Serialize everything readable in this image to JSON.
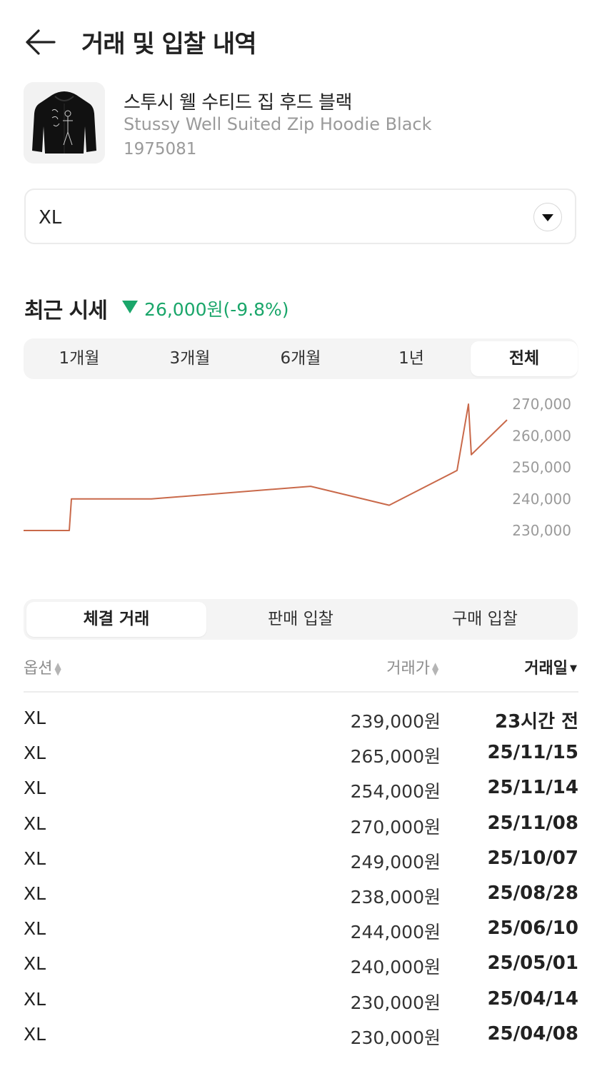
{
  "header": {
    "title": "거래 및 입찰 내역",
    "back_icon": "arrow-left-icon"
  },
  "product": {
    "name_ko": "스투시 웰 수티드 집 후드 블랙",
    "name_en": "Stussy Well Suited Zip Hoodie Black",
    "code": "1975081"
  },
  "size_select": {
    "value": "XL",
    "icon": "chevron-down-icon"
  },
  "recent": {
    "label": "최근 시세",
    "change": "26,000원(-9.8%)",
    "direction": "down",
    "color": "#1aa66a"
  },
  "period_tabs": [
    {
      "label": "1개월",
      "active": false
    },
    {
      "label": "3개월",
      "active": false
    },
    {
      "label": "6개월",
      "active": false
    },
    {
      "label": "1년",
      "active": false
    },
    {
      "label": "전체",
      "active": true
    }
  ],
  "chart_data": {
    "type": "line",
    "line_color": "#c9694a",
    "y_ticks": [
      "270,000",
      "260,000",
      "250,000",
      "240,000",
      "230,000"
    ],
    "ylim": [
      230000,
      270000
    ],
    "x": [
      "25/04/08",
      "25/04/14",
      "25/05/01",
      "25/06/10",
      "25/08/28",
      "25/10/07",
      "25/11/08",
      "25/11/14",
      "25/11/15"
    ],
    "values": [
      230000,
      230000,
      240000,
      244000,
      238000,
      249000,
      270000,
      254000,
      265000
    ]
  },
  "list_tabs": [
    {
      "label": "체결 거래",
      "active": true
    },
    {
      "label": "판매 입찰",
      "active": false
    },
    {
      "label": "구매 입찰",
      "active": false
    }
  ],
  "table": {
    "headers": {
      "option": "옵션",
      "price": "거래가",
      "date": "거래일"
    },
    "sorted_by": "date",
    "rows": [
      {
        "option": "XL",
        "price": "239,000원",
        "date": "23시간 전"
      },
      {
        "option": "XL",
        "price": "265,000원",
        "date": "25/11/15"
      },
      {
        "option": "XL",
        "price": "254,000원",
        "date": "25/11/14"
      },
      {
        "option": "XL",
        "price": "270,000원",
        "date": "25/11/08"
      },
      {
        "option": "XL",
        "price": "249,000원",
        "date": "25/10/07"
      },
      {
        "option": "XL",
        "price": "238,000원",
        "date": "25/08/28"
      },
      {
        "option": "XL",
        "price": "244,000원",
        "date": "25/06/10"
      },
      {
        "option": "XL",
        "price": "240,000원",
        "date": "25/05/01"
      },
      {
        "option": "XL",
        "price": "230,000원",
        "date": "25/04/14"
      },
      {
        "option": "XL",
        "price": "230,000원",
        "date": "25/04/08"
      }
    ]
  }
}
